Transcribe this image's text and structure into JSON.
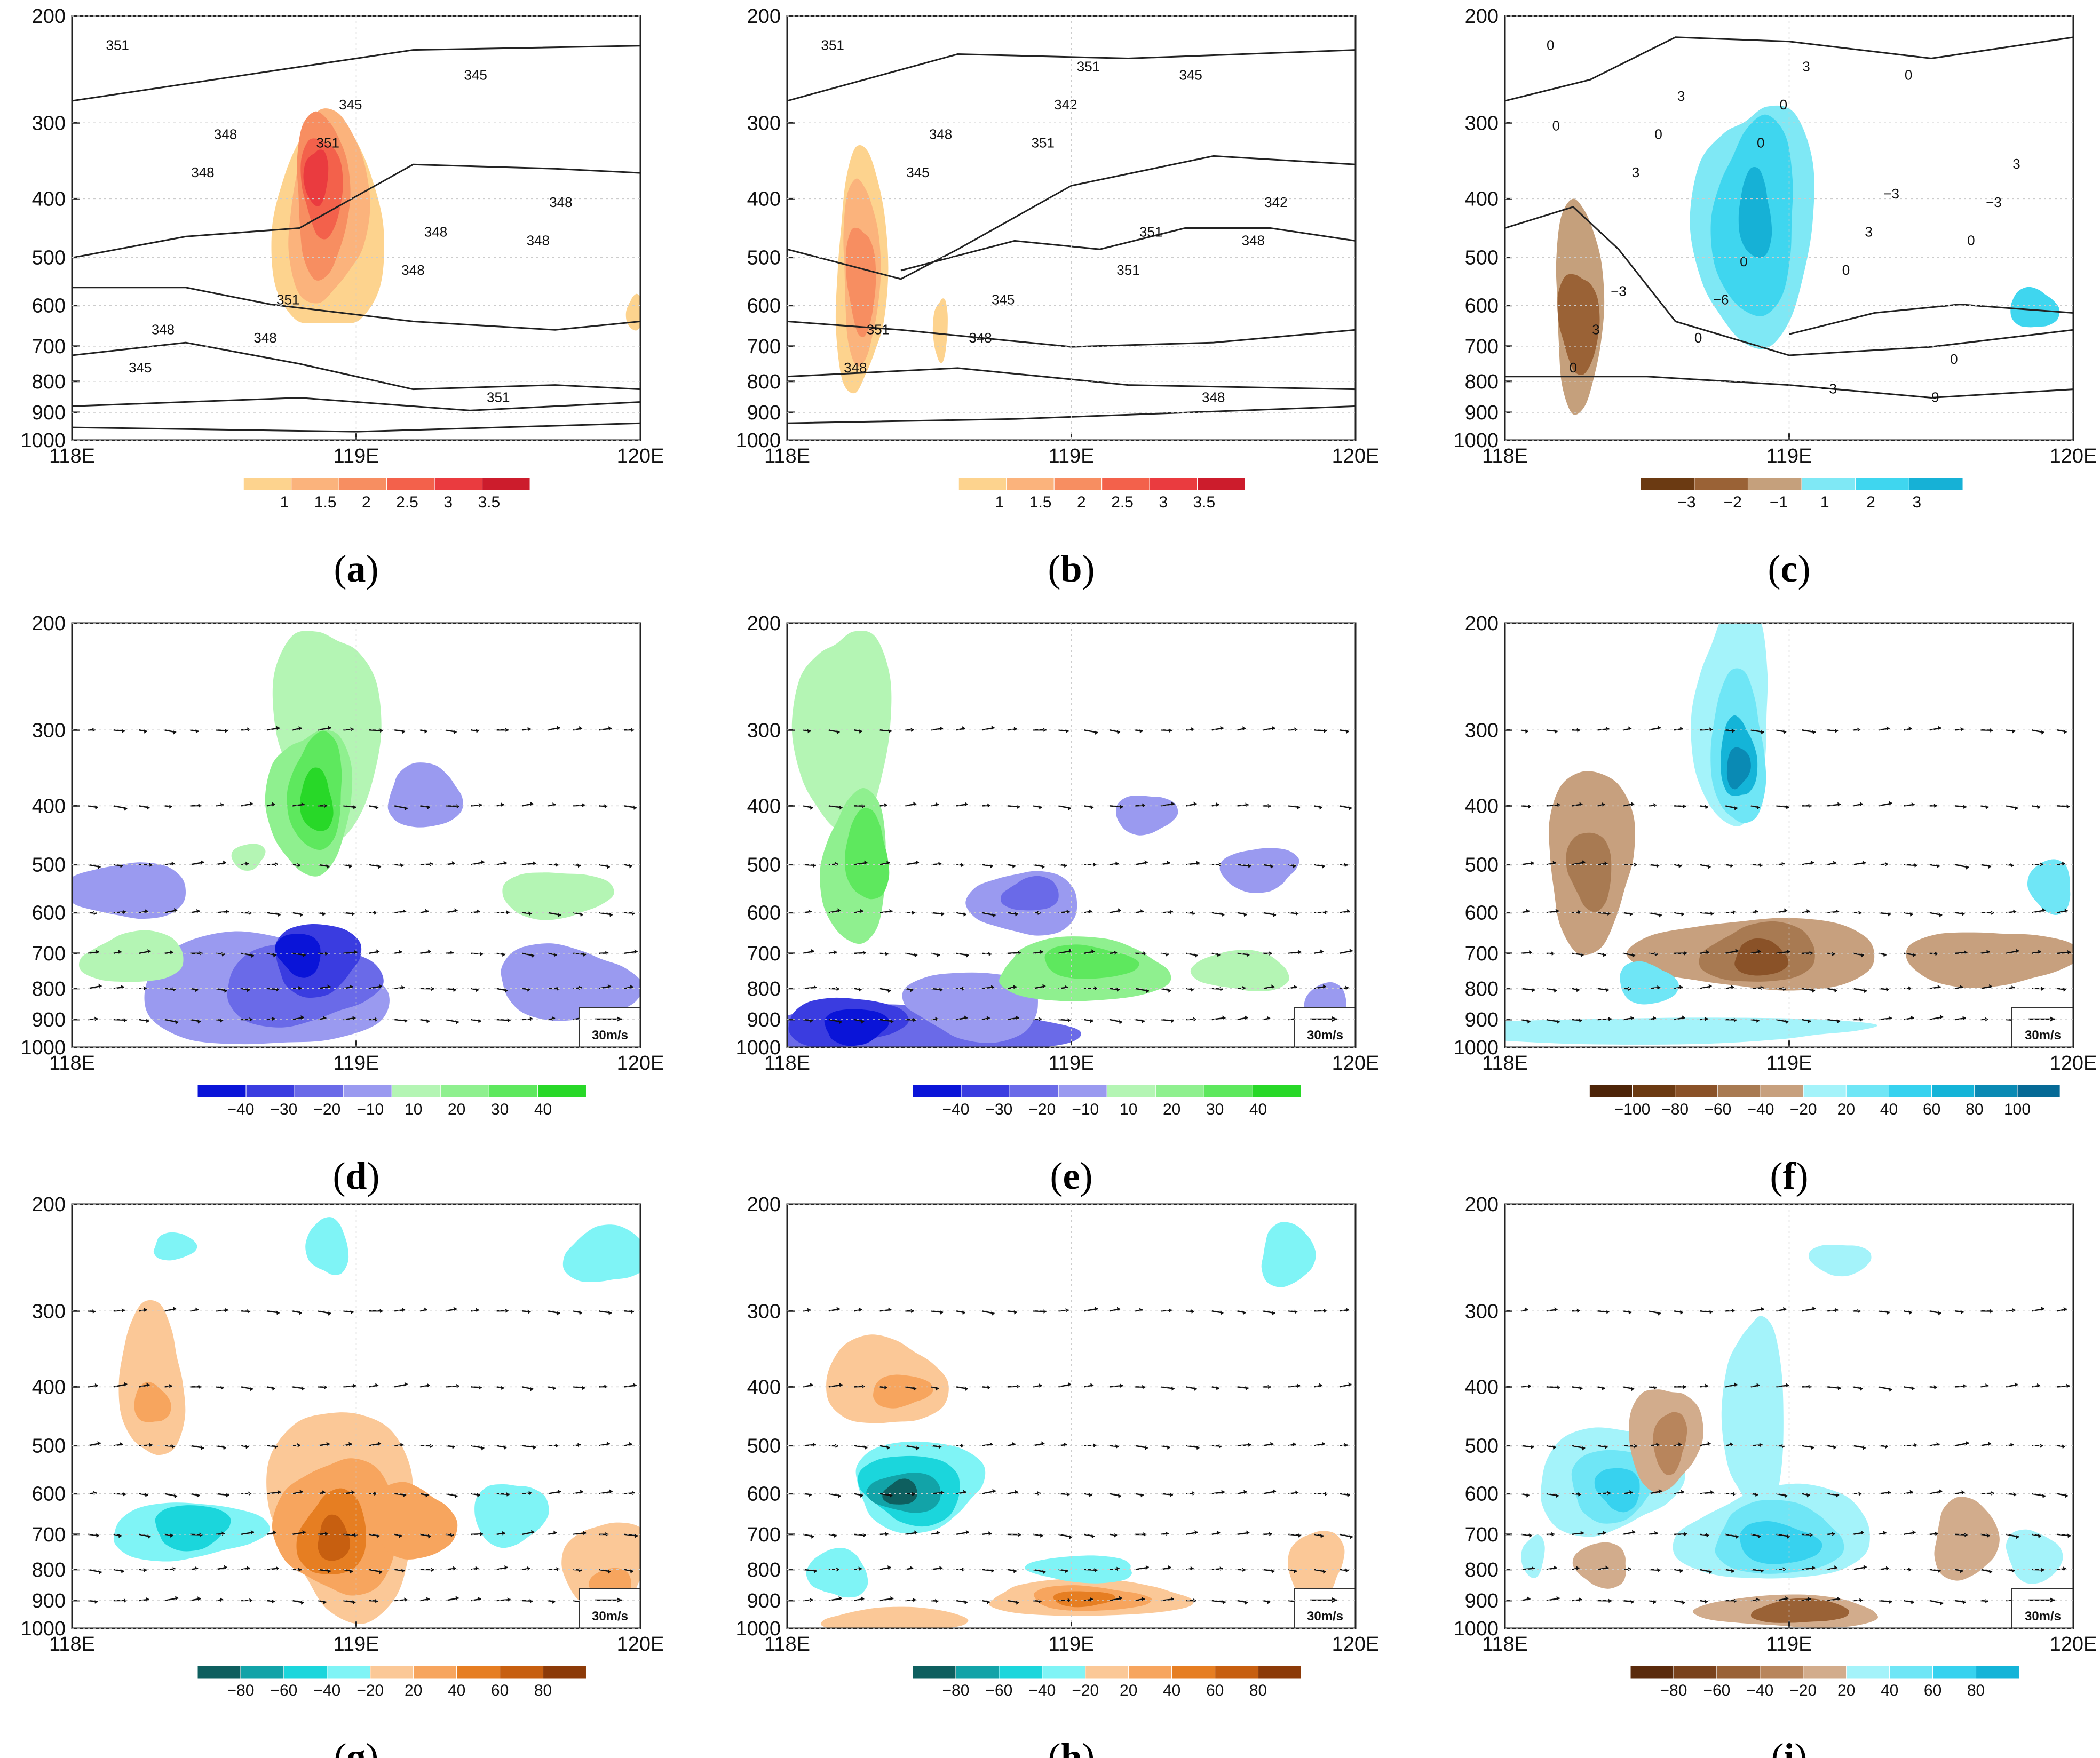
{
  "chart_data": [
    {
      "panel": "a",
      "type": "contour",
      "xlabels": [
        "118E",
        "119E",
        "120E"
      ],
      "ylabels": [
        "200",
        "300",
        "400",
        "500",
        "600",
        "700",
        "800",
        "900",
        "1000"
      ],
      "colorbar": {
        "ticks": [
          "1",
          "1.5",
          "2",
          "2.5",
          "3",
          "3.5"
        ],
        "colors": [
          "#fdd38e",
          "#fbb37c",
          "#f78e61",
          "#f3614b",
          "#ea3b3f",
          "#cc1c2c"
        ]
      },
      "contour_labels": [
        "351",
        "351",
        "348",
        "348",
        "345",
        "348",
        "348",
        "345",
        "345",
        "348",
        "351",
        "351",
        "348",
        "348",
        "348"
      ]
    },
    {
      "panel": "b",
      "type": "contour",
      "xlabels": [
        "118E",
        "119E",
        "120E"
      ],
      "ylabels": [
        "200",
        "300",
        "400",
        "500",
        "600",
        "700",
        "800",
        "900",
        "1000"
      ],
      "colorbar": {
        "ticks": [
          "1",
          "1.5",
          "2",
          "2.5",
          "3",
          "3.5"
        ],
        "colors": [
          "#fdd38e",
          "#fbb37c",
          "#f78e61",
          "#f3614b",
          "#ea3b3f",
          "#cc1c2c"
        ]
      },
      "contour_labels": [
        "351",
        "351",
        "348",
        "348",
        "345",
        "345",
        "351",
        "348",
        "342",
        "342",
        "345",
        "348",
        "348",
        "351",
        "351",
        "351"
      ]
    },
    {
      "panel": "c",
      "type": "contour",
      "xlabels": [
        "118E",
        "119E",
        "120E"
      ],
      "ylabels": [
        "200",
        "300",
        "400",
        "500",
        "600",
        "700",
        "800",
        "900",
        "1000"
      ],
      "colorbar": {
        "ticks": [
          "−3",
          "−2",
          "−1",
          "1",
          "2",
          "3"
        ],
        "colors": [
          "#6b3a12",
          "#9a6236",
          "#c5a07c",
          "#7fe8f5",
          "#3fd6ef",
          "#16b1d6"
        ]
      },
      "contour_labels": [
        "0",
        "0",
        "0",
        "0",
        "0",
        "3",
        "0",
        "0",
        "0",
        "−3",
        "−6",
        "−9",
        "0",
        "3",
        "3",
        "3",
        "3",
        "0",
        "0",
        "3",
        "−3",
        "−3",
        "−3",
        "0"
      ]
    },
    {
      "panel": "d",
      "type": "vector-contour",
      "xlabels": [
        "118E",
        "119E",
        "120E"
      ],
      "ylabels": [
        "200",
        "300",
        "400",
        "500",
        "600",
        "700",
        "800",
        "900",
        "1000"
      ],
      "colorbar": {
        "ticks": [
          "−40",
          "−30",
          "−20",
          "−10",
          "10",
          "20",
          "30",
          "40"
        ],
        "colors": [
          "#0a14d8",
          "#3a3ce0",
          "#6a6ae8",
          "#9a9af0",
          "#b4f5b4",
          "#8ff08f",
          "#5ee85e",
          "#28d828"
        ]
      },
      "reference_vector": "30m/s"
    },
    {
      "panel": "e",
      "type": "vector-contour",
      "xlabels": [
        "118E",
        "119E",
        "120E"
      ],
      "ylabels": [
        "200",
        "300",
        "400",
        "500",
        "600",
        "700",
        "800",
        "900",
        "1000"
      ],
      "colorbar": {
        "ticks": [
          "−40",
          "−30",
          "−20",
          "−10",
          "10",
          "20",
          "30",
          "40"
        ],
        "colors": [
          "#0a14d8",
          "#3a3ce0",
          "#6a6ae8",
          "#9a9af0",
          "#b4f5b4",
          "#8ff08f",
          "#5ee85e",
          "#28d828"
        ]
      },
      "reference_vector": "30m/s"
    },
    {
      "panel": "f",
      "type": "vector-contour",
      "xlabels": [
        "118E",
        "119E",
        "120E"
      ],
      "ylabels": [
        "200",
        "300",
        "400",
        "500",
        "600",
        "700",
        "800",
        "900",
        "1000"
      ],
      "colorbar": {
        "ticks": [
          "−100",
          "−80",
          "−60",
          "−40",
          "−20",
          "20",
          "40",
          "60",
          "80",
          "100"
        ],
        "colors": [
          "#4d2408",
          "#6b3a12",
          "#8a5228",
          "#a87a52",
          "#c7a07e",
          "#a4f3fa",
          "#6fe6f6",
          "#37d2ef",
          "#14b4d8",
          "#0a8ab4",
          "#066a96"
        ]
      },
      "reference_vector": "30m/s"
    },
    {
      "panel": "g",
      "type": "vector-contour",
      "xlabels": [
        "118E",
        "119E",
        "120E"
      ],
      "ylabels": [
        "200",
        "300",
        "400",
        "500",
        "600",
        "700",
        "800",
        "900",
        "1000"
      ],
      "colorbar": {
        "ticks": [
          "−80",
          "−60",
          "−40",
          "−20",
          "20",
          "40",
          "60",
          "80"
        ],
        "colors": [
          "#0e5f5f",
          "#12a3a8",
          "#1bd6dc",
          "#7ff4f6",
          "#fbc897",
          "#f7a55e",
          "#e67e22",
          "#c75f10",
          "#8c3a08"
        ]
      },
      "reference_vector": "30m/s"
    },
    {
      "panel": "h",
      "type": "vector-contour",
      "xlabels": [
        "118E",
        "119E",
        "120E"
      ],
      "ylabels": [
        "200",
        "300",
        "400",
        "500",
        "600",
        "700",
        "800",
        "900",
        "1000"
      ],
      "colorbar": {
        "ticks": [
          "−80",
          "−60",
          "−40",
          "−20",
          "20",
          "40",
          "60",
          "80"
        ],
        "colors": [
          "#0e5f5f",
          "#12a3a8",
          "#1bd6dc",
          "#7ff4f6",
          "#fbc897",
          "#f7a55e",
          "#e67e22",
          "#c75f10",
          "#8c3a08"
        ]
      },
      "reference_vector": "30m/s"
    },
    {
      "panel": "i",
      "type": "vector-contour",
      "xlabels": [
        "118E",
        "119E",
        "120E"
      ],
      "ylabels": [
        "200",
        "300",
        "400",
        "500",
        "600",
        "700",
        "800",
        "900",
        "1000"
      ],
      "colorbar": {
        "ticks": [
          "−80",
          "−60",
          "−40",
          "−20",
          "20",
          "40",
          "60",
          "80"
        ],
        "colors": [
          "#5a2a0c",
          "#7a421c",
          "#9a6236",
          "#b8855c",
          "#d2ac8c",
          "#a4f3fa",
          "#6fe6f6",
          "#37d2ef",
          "#14b4d8"
        ]
      },
      "reference_vector": "30m/s"
    }
  ]
}
